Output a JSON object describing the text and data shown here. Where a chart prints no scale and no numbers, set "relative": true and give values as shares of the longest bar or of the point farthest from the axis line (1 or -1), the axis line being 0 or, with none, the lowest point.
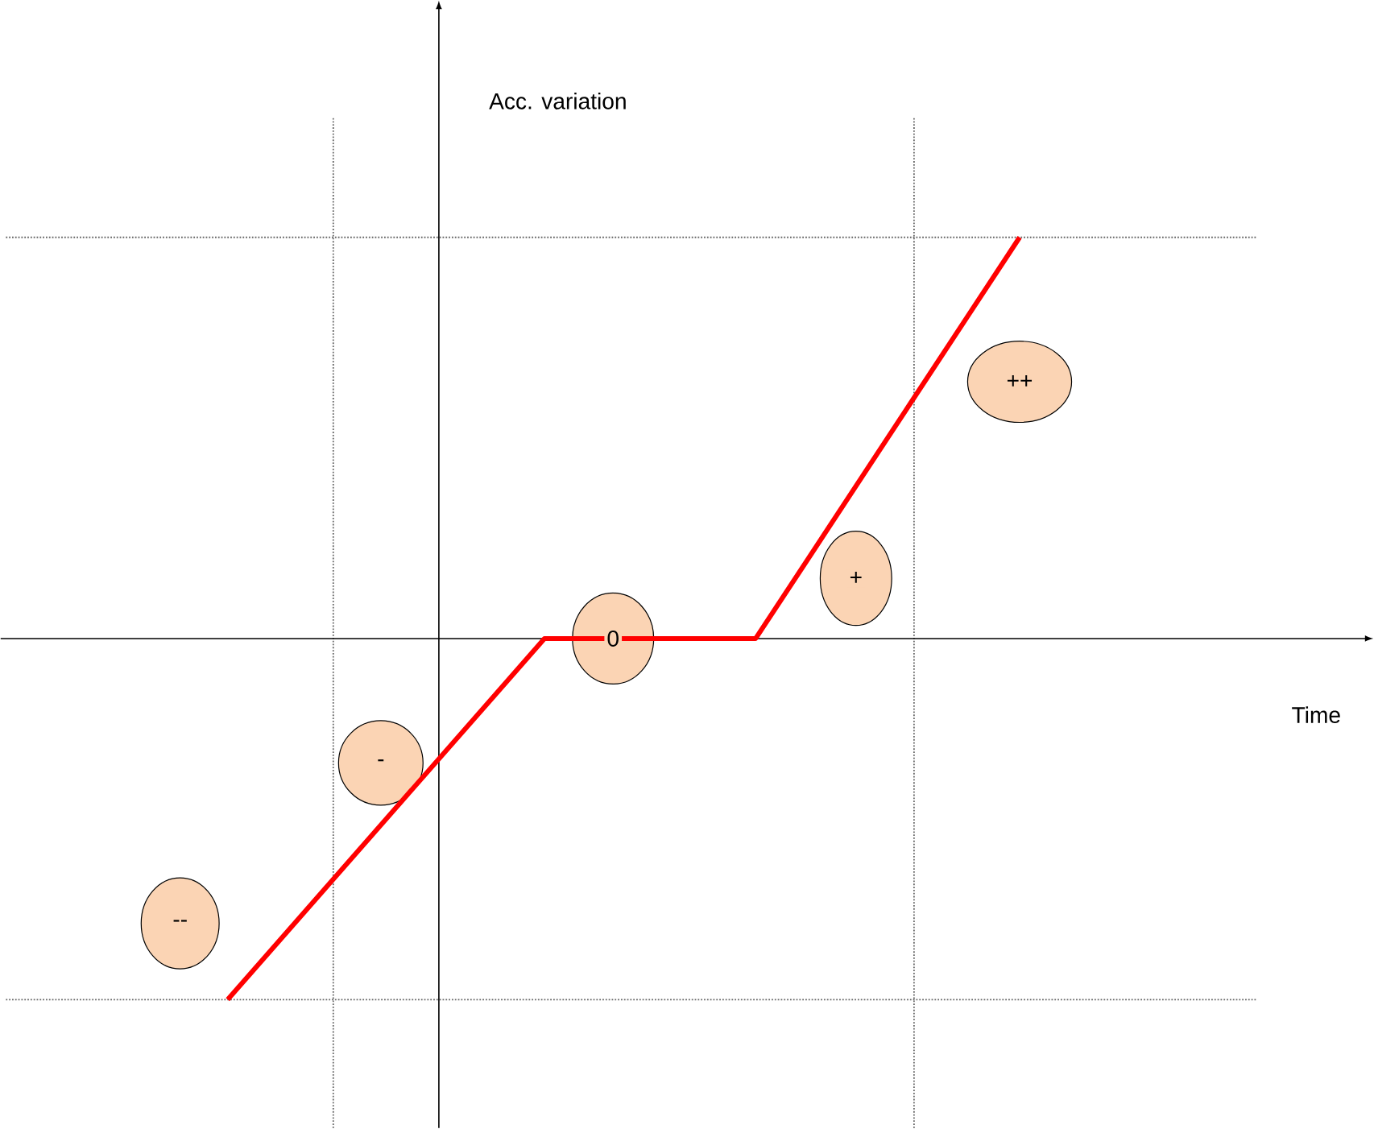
{
  "chart_data": {
    "type": "line",
    "relative": true,
    "categories": [
      null,
      null,
      null,
      null,
      null,
      null,
      null,
      null,
      null,
      null,
      null,
      null,
      null,
      null,
      null,
      null
    ],
    "values": [
      -0.9,
      -0.75,
      -0.6,
      -0.45,
      -0.3,
      -0.15,
      0,
      0,
      0,
      0,
      0,
      0.2,
      0.4,
      0.6,
      0.8,
      1
    ],
    "color": "#ff0000",
    "line_style": "solid",
    "marker": "none",
    "annotations": [
      "--",
      "-",
      "0",
      "+",
      "++",
      "Acc. variation",
      "Time"
    ]
  }
}
